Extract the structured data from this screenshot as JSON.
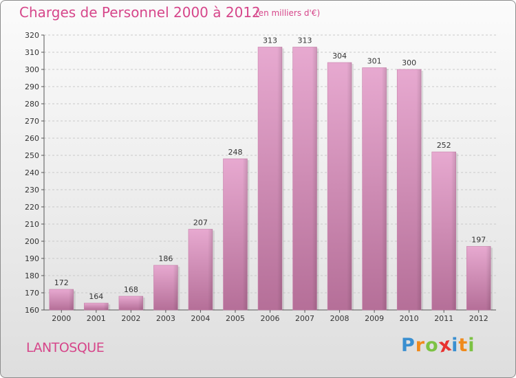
{
  "chart_data": {
    "type": "bar",
    "title": "Charges de Personnel 2000 à 2012",
    "subtitle": "(en milliers d'€)",
    "categories": [
      "2000",
      "2001",
      "2002",
      "2003",
      "2004",
      "2005",
      "2006",
      "2007",
      "2008",
      "2009",
      "2010",
      "2011",
      "2012"
    ],
    "values": [
      172,
      164,
      168,
      186,
      207,
      248,
      313,
      313,
      304,
      301,
      300,
      252,
      197
    ],
    "ylim": [
      160,
      320
    ],
    "yticks": [
      160,
      170,
      180,
      190,
      200,
      210,
      220,
      230,
      240,
      250,
      260,
      270,
      280,
      290,
      300,
      310,
      320
    ],
    "grid": true,
    "bar_color": "#d48fba"
  },
  "commune": "LANTOSQUE",
  "logo": {
    "letters": [
      "P",
      "r",
      "o",
      "x",
      "i",
      "t",
      "i"
    ],
    "colors": [
      "#3a8fd0",
      "#f08a1c",
      "#7cc243",
      "#e8312f",
      "#3a8fd0",
      "#f08a1c",
      "#7cc243"
    ]
  }
}
